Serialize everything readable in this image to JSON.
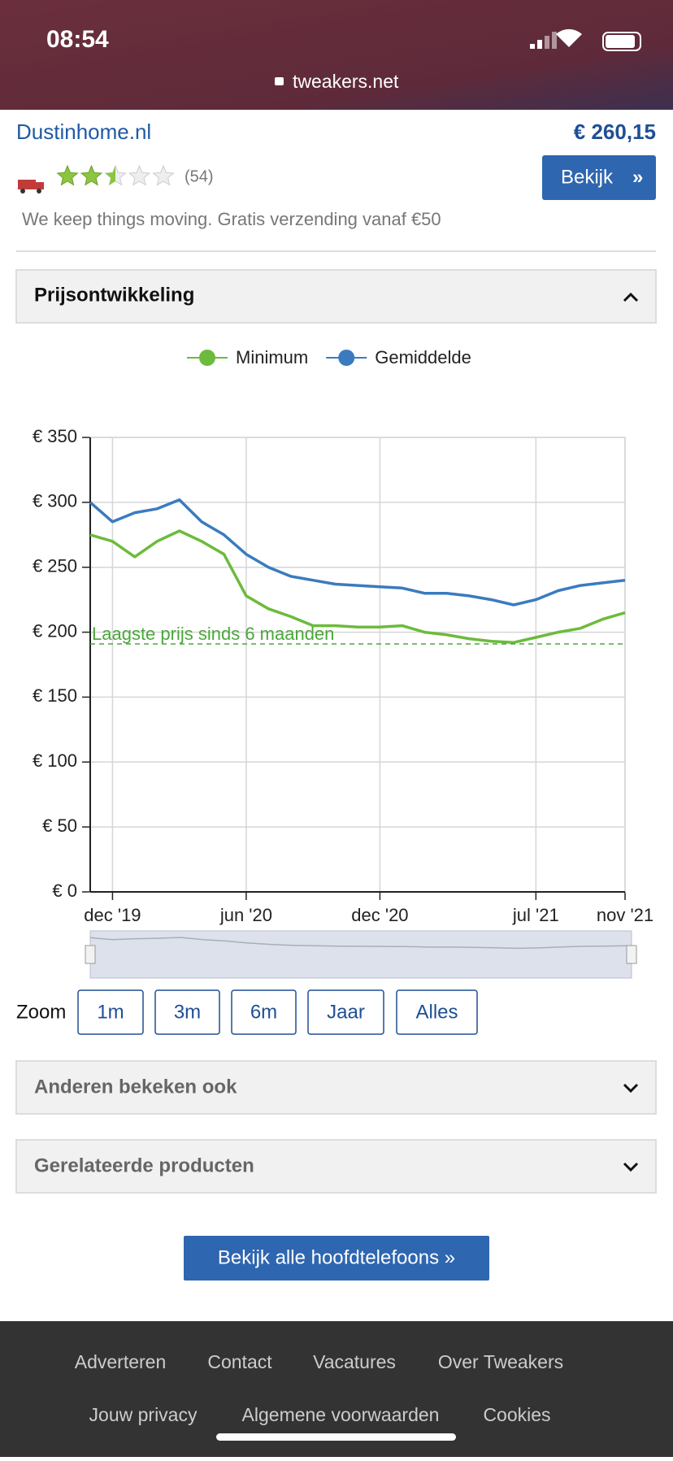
{
  "status_bar": {
    "time": "08:54",
    "url": "tweakers.net"
  },
  "shop": {
    "name": "Dustinhome.nl",
    "price": "€ 260,15",
    "reviews": "(54)",
    "button": "Bekijk",
    "tagline": "We keep things moving. Gratis verzending vanaf €50"
  },
  "section": {
    "title": "Prijsontwikkeling"
  },
  "chart_data": {
    "type": "line",
    "x": [
      "2019-11",
      "2019-12",
      "2020-01",
      "2020-02",
      "2020-03",
      "2020-04",
      "2020-05",
      "2020-06",
      "2020-07",
      "2020-08",
      "2020-09",
      "2020-10",
      "2020-11",
      "2020-12",
      "2021-01",
      "2021-02",
      "2021-03",
      "2021-04",
      "2021-05",
      "2021-06",
      "2021-07",
      "2021-08",
      "2021-09",
      "2021-10",
      "2021-11"
    ],
    "series": [
      {
        "name": "Minimum",
        "color": "#6cbb3c",
        "values": [
          275,
          270,
          258,
          270,
          278,
          270,
          260,
          228,
          218,
          212,
          205,
          205,
          204,
          204,
          205,
          200,
          198,
          195,
          193,
          192,
          196,
          200,
          203,
          210,
          215
        ]
      },
      {
        "name": "Gemiddelde",
        "color": "#3a7bbf",
        "values": [
          300,
          285,
          292,
          295,
          302,
          285,
          275,
          260,
          250,
          243,
          240,
          237,
          236,
          235,
          234,
          230,
          230,
          228,
          225,
          221,
          225,
          232,
          236,
          238,
          240
        ]
      }
    ],
    "xlim": [
      "2019-11",
      "2021-11"
    ],
    "xticks": [
      {
        "value": "2019-12",
        "label": "dec '19"
      },
      {
        "value": "2020-06",
        "label": "jun '20"
      },
      {
        "value": "2020-12",
        "label": "dec '20"
      },
      {
        "value": "2021-07",
        "label": "jul '21"
      },
      {
        "value": "2021-11",
        "label": "nov '21"
      }
    ],
    "ylim": [
      0,
      350
    ],
    "yticks": [
      {
        "value": 0,
        "label": "€ 0"
      },
      {
        "value": 50,
        "label": "€ 50"
      },
      {
        "value": 100,
        "label": "€ 100"
      },
      {
        "value": 150,
        "label": "€ 150"
      },
      {
        "value": 200,
        "label": "€ 200"
      },
      {
        "value": 250,
        "label": "€ 250"
      },
      {
        "value": 300,
        "label": "€ 300"
      },
      {
        "value": 350,
        "label": "€ 350"
      }
    ],
    "grid": true,
    "legend": "top",
    "annotation": {
      "value": 191,
      "label": "Laagste prijs sinds 6 maanden",
      "color": "#4aa83a"
    }
  },
  "zoom": {
    "label": "Zoom",
    "buttons": [
      "1m",
      "3m",
      "6m",
      "Jaar",
      "Alles"
    ]
  },
  "accordions": [
    "Anderen bekeken ook",
    "Gerelateerde producten"
  ],
  "all_button": "Bekijk alle hoofdtelefoons »",
  "footer": {
    "row1": [
      "Adverteren",
      "Contact",
      "Vacatures",
      "Over Tweakers"
    ],
    "row2": [
      "Jouw privacy",
      "Algemene voorwaarden",
      "Cookies"
    ]
  }
}
